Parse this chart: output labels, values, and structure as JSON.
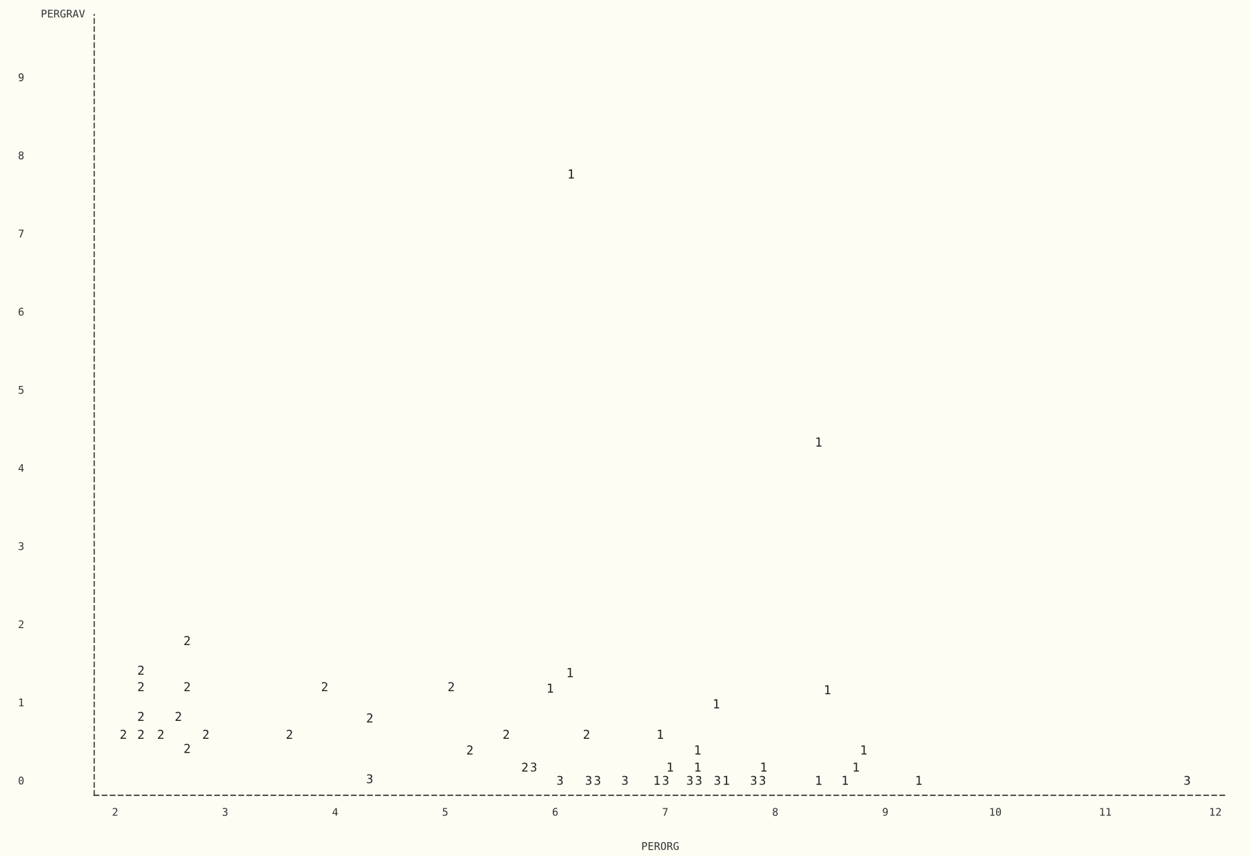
{
  "chart_data": {
    "type": "scatter",
    "xlabel": "PERORG",
    "ylabel": "PERGRAV",
    "xlim": [
      1.81,
      12.1
    ],
    "ylim": [
      -0.19,
      9.8
    ],
    "xticks": [
      2,
      3,
      4,
      5,
      6,
      7,
      8,
      9,
      10,
      11,
      12
    ],
    "yticks": [
      0,
      1,
      2,
      3,
      4,
      5,
      6,
      7,
      8,
      9
    ],
    "grid": false,
    "line_style": "dashed",
    "series": [
      {
        "name": "1",
        "color": "#222222",
        "x": [
          6.14,
          8.39,
          6.13,
          5.95,
          8.47,
          7.46,
          6.95,
          7.29,
          8.8,
          7.04,
          7.29,
          7.89,
          8.73,
          6.92,
          7.55,
          8.39,
          8.63,
          9.3
        ],
        "values": [
          7.76,
          4.33,
          1.38,
          1.18,
          1.16,
          0.98,
          0.59,
          0.39,
          0.39,
          0.17,
          0.17,
          0.17,
          0.17,
          0,
          0,
          0,
          0,
          0
        ]
      },
      {
        "name": "2",
        "color": "#222222",
        "x": [
          2.65,
          2.23,
          2.23,
          2.65,
          3.9,
          5.05,
          2.23,
          2.57,
          4.31,
          2.07,
          2.23,
          2.41,
          2.82,
          3.58,
          5.55,
          6.28,
          2.65,
          5.22,
          5.72
        ],
        "values": [
          1.79,
          1.41,
          1.2,
          1.2,
          1.2,
          1.2,
          0.82,
          0.82,
          0.8,
          0.59,
          0.59,
          0.59,
          0.59,
          0.59,
          0.59,
          0.59,
          0.41,
          0.39,
          0.17
        ]
      },
      {
        "name": "3",
        "color": "#222222",
        "x": [
          4.31,
          5.8,
          6.04,
          6.3,
          6.38,
          6.63,
          7.0,
          7.22,
          7.3,
          7.47,
          7.8,
          7.88,
          11.74
        ],
        "values": [
          0.02,
          0.17,
          0,
          0,
          0,
          0,
          0,
          0,
          0,
          0,
          0,
          0,
          0
        ]
      }
    ]
  }
}
